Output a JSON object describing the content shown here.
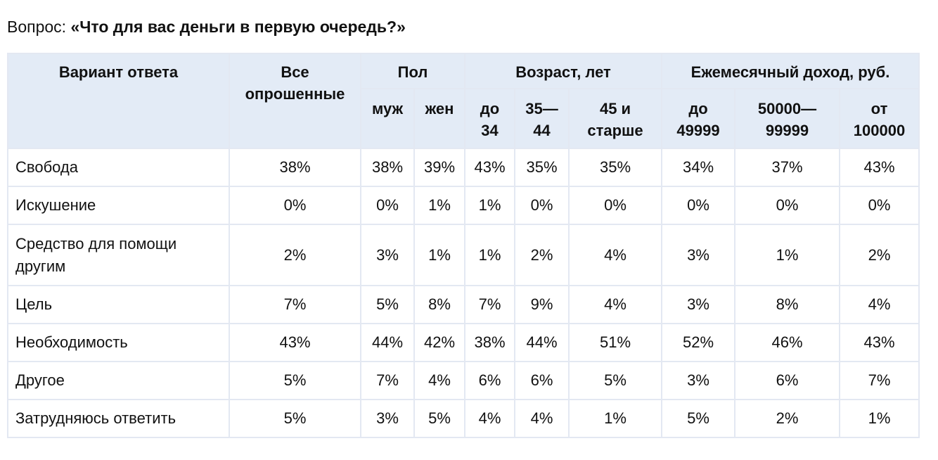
{
  "question": {
    "prefix": "Вопрос:",
    "text": "«Что для вас деньги в первую очередь?»"
  },
  "table": {
    "headers": {
      "answer": "Вариант ответа",
      "all": "Все опрошенные",
      "gender_group": "Пол",
      "age_group": "Возраст, лет",
      "income_group": "Ежемесячный доход, руб.",
      "gender": [
        "муж",
        "жен"
      ],
      "age": [
        "до 34",
        "35—44",
        "45 и старше"
      ],
      "income": [
        "до 49999",
        "50000—99999",
        "от 100000"
      ]
    },
    "rows": [
      {
        "label": "Свобода",
        "values": [
          "38%",
          "38%",
          "39%",
          "43%",
          "35%",
          "35%",
          "34%",
          "37%",
          "43%"
        ]
      },
      {
        "label": "Искушение",
        "values": [
          "0%",
          "0%",
          "1%",
          "1%",
          "0%",
          "0%",
          "0%",
          "0%",
          "0%"
        ]
      },
      {
        "label": "Средство для помощи другим",
        "values": [
          "2%",
          "3%",
          "1%",
          "1%",
          "2%",
          "4%",
          "3%",
          "1%",
          "2%"
        ]
      },
      {
        "label": "Цель",
        "values": [
          "7%",
          "5%",
          "8%",
          "7%",
          "9%",
          "4%",
          "3%",
          "8%",
          "4%"
        ]
      },
      {
        "label": "Необходимость",
        "values": [
          "43%",
          "44%",
          "42%",
          "38%",
          "44%",
          "51%",
          "52%",
          "46%",
          "43%"
        ]
      },
      {
        "label": "Другое",
        "values": [
          "5%",
          "7%",
          "4%",
          "6%",
          "6%",
          "5%",
          "3%",
          "6%",
          "7%"
        ]
      },
      {
        "label": "Затрудняюсь ответить",
        "values": [
          "5%",
          "3%",
          "5%",
          "4%",
          "4%",
          "1%",
          "5%",
          "2%",
          "1%"
        ]
      }
    ]
  }
}
